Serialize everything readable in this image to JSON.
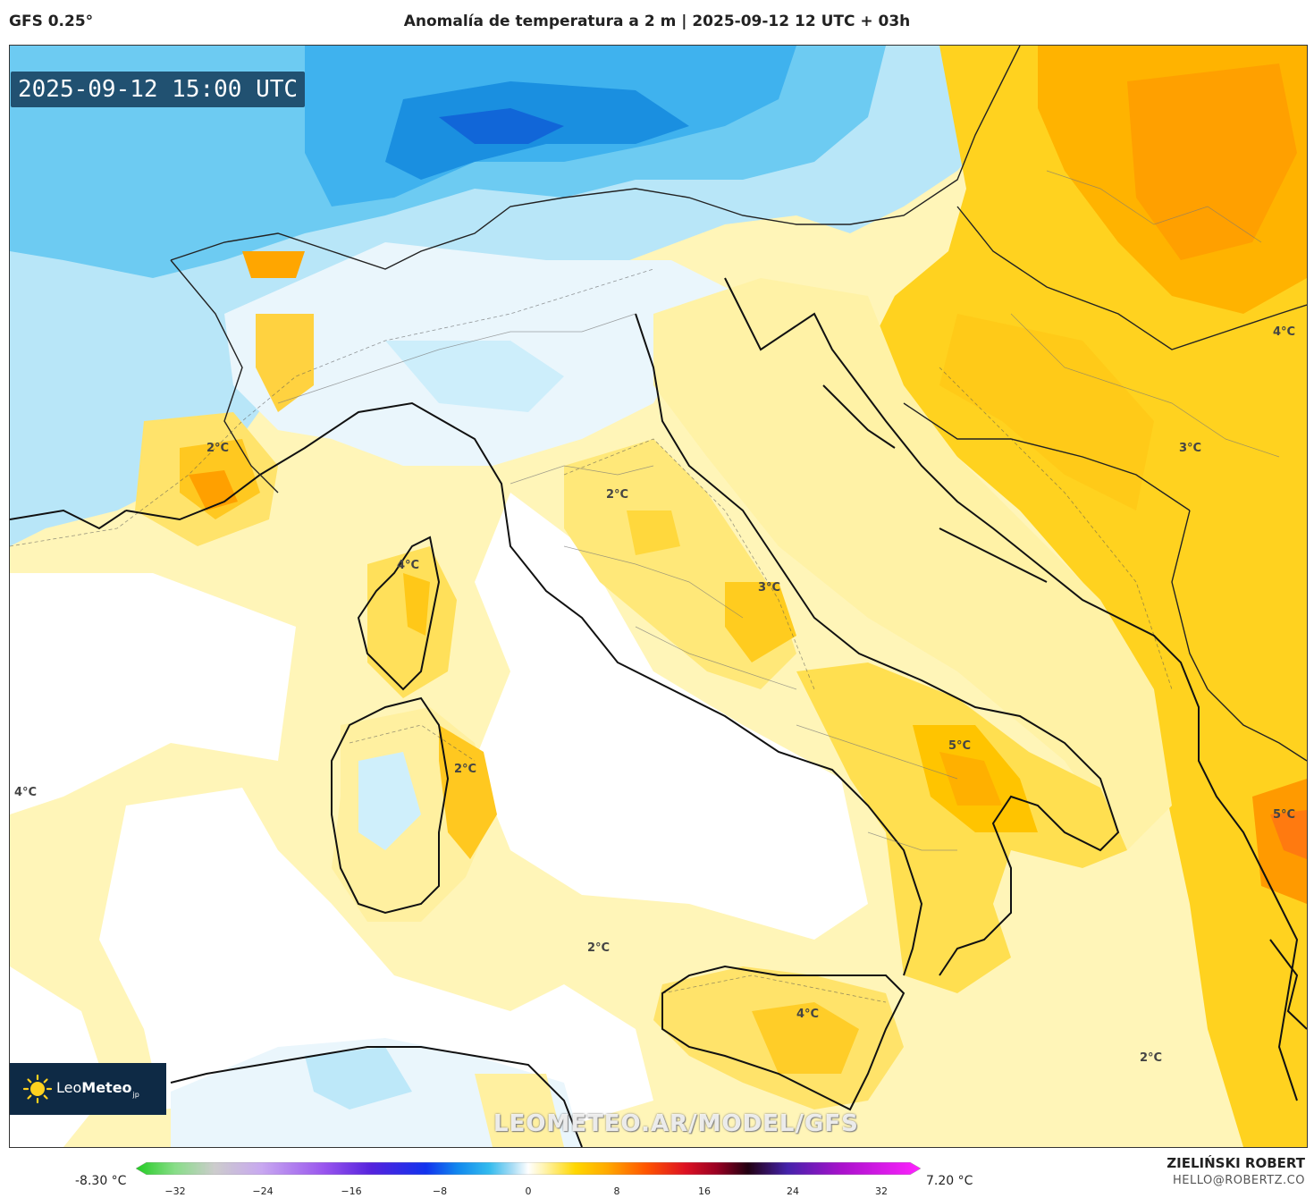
{
  "header": {
    "model": "GFS 0.25°",
    "title": "Anomalía de temperatura a 2 m | 2025-09-12 12 UTC + 03h"
  },
  "map": {
    "timestamp": "2025-09-12 15:00 UTC",
    "watermark": "LEOMETEO.AR/MODEL/GFS",
    "labels": [
      {
        "name": "label-france-south",
        "text": "2°C"
      },
      {
        "name": "label-corsica",
        "text": "4°C"
      },
      {
        "name": "label-sardinia",
        "text": "2°C"
      },
      {
        "name": "label-tuscany",
        "text": "2°C"
      },
      {
        "name": "label-abruzzo",
        "text": "3°C"
      },
      {
        "name": "label-puglia",
        "text": "5°C"
      },
      {
        "name": "label-sicily",
        "text": "4°C"
      },
      {
        "name": "label-tyrrhenian",
        "text": "2°C"
      },
      {
        "name": "label-ionian",
        "text": "2°C"
      },
      {
        "name": "label-balkans-3",
        "text": "3°C"
      },
      {
        "name": "label-balkans-4",
        "text": "4°C"
      },
      {
        "name": "label-greece",
        "text": "5°C"
      },
      {
        "name": "label-west-edge",
        "text": "4°C"
      }
    ]
  },
  "logo": {
    "brand_light": "Leo",
    "brand_bold": "Meteo",
    "suffix": "jp"
  },
  "colorbar": {
    "min_label": "-8.30 °C",
    "max_label": "7.20 °C",
    "ticks": [
      "−32",
      "−24",
      "−16",
      "−8",
      "0",
      "8",
      "16",
      "24",
      "32"
    ],
    "colors": [
      "#22cc22",
      "#88dd88",
      "#cccccc",
      "#c8a8f0",
      "#9955ee",
      "#5522dd",
      "#1133ee",
      "#1188ee",
      "#33bbee",
      "#aaddf5",
      "#ffffff",
      "#fff4b0",
      "#ffd700",
      "#ffaa00",
      "#ff5500",
      "#dd1122",
      "#990022",
      "#220011",
      "#4422aa",
      "#aa11cc",
      "#ff22ff"
    ]
  },
  "credits": {
    "author": "ZIELIŃSKI ROBERT",
    "email": "HELLO@ROBERTZ.CO"
  }
}
